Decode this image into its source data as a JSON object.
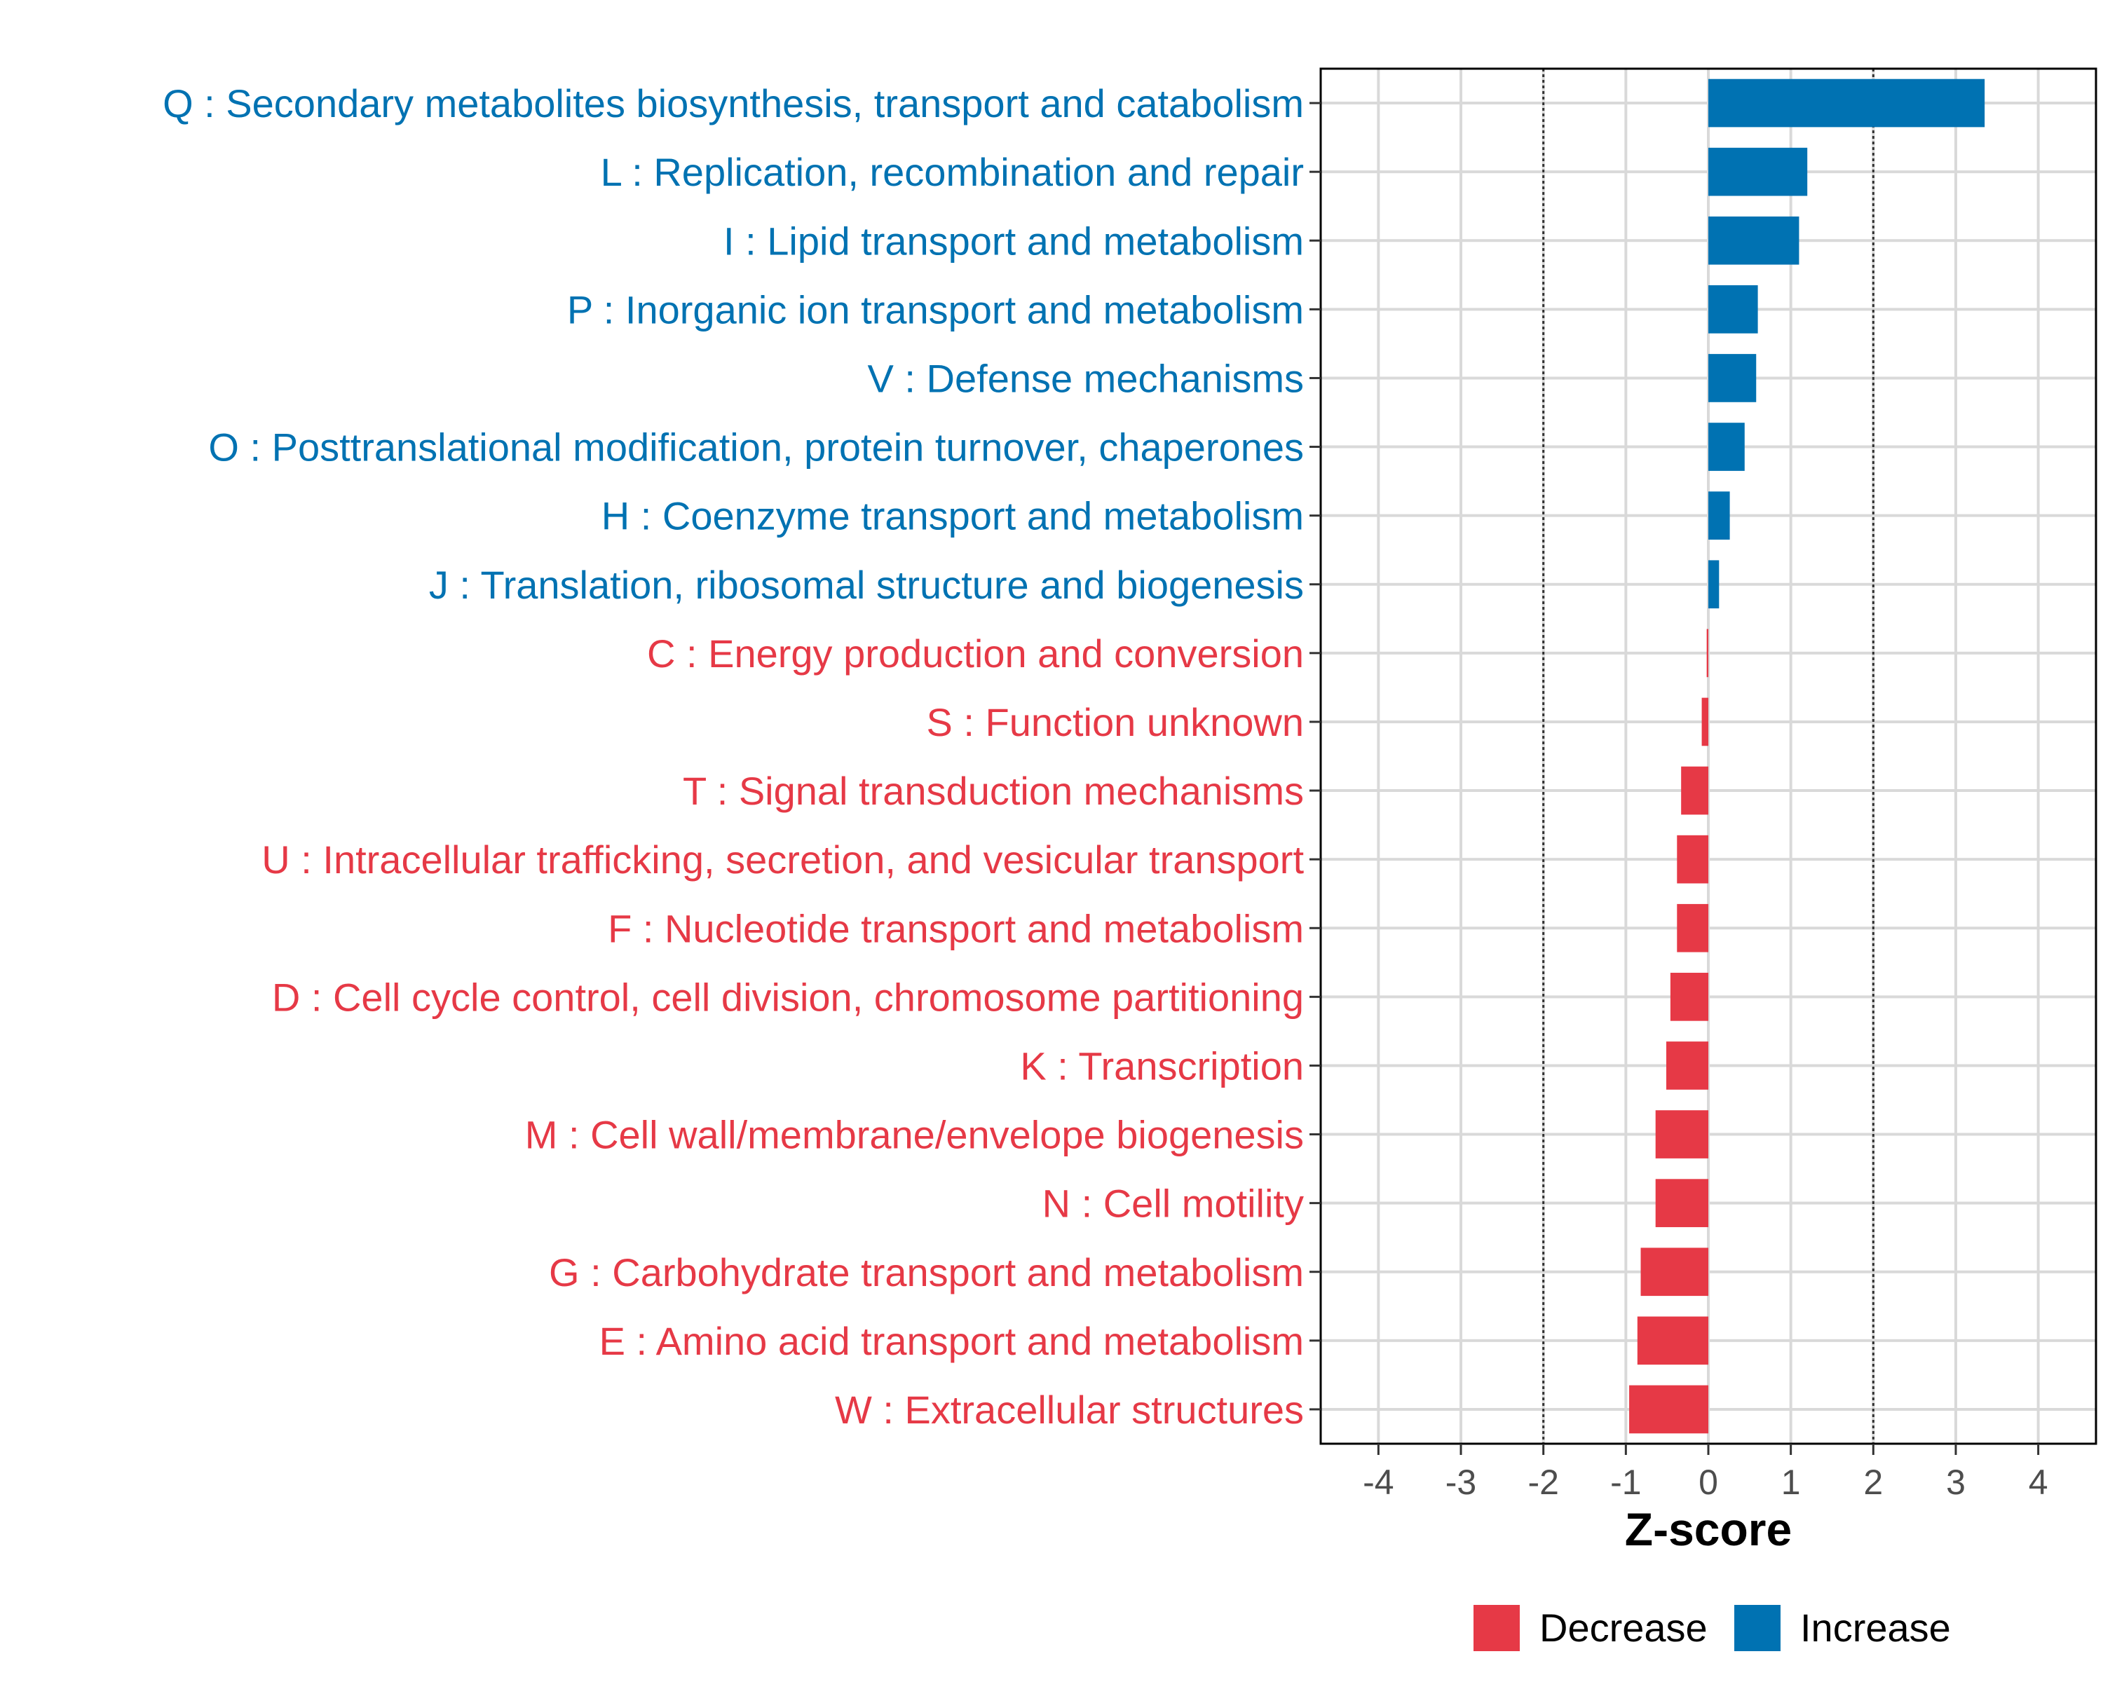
{
  "chart_data": {
    "type": "bar",
    "orientation": "horizontal",
    "xlabel": "Z-score",
    "xlim": [
      -4.7,
      4.7
    ],
    "xticks": [
      -4,
      -3,
      -2,
      -1,
      0,
      1,
      2,
      3,
      4
    ],
    "xtick_labels": [
      "-4",
      "-3",
      "-2",
      "-1",
      "0",
      "1",
      "2",
      "3",
      "4"
    ],
    "reference_lines": [
      -2,
      2
    ],
    "colors": {
      "Decrease": "#e63946",
      "Increase": "#0072b2"
    },
    "legend": {
      "position": "bottom",
      "entries": [
        {
          "label": "Decrease",
          "color": "#e63946"
        },
        {
          "label": "Increase",
          "color": "#0072b2"
        }
      ]
    },
    "categories": [
      "Q : Secondary metabolites biosynthesis, transport and catabolism",
      "L : Replication, recombination and repair",
      "I : Lipid transport and metabolism",
      "P : Inorganic ion transport and metabolism",
      "V : Defense mechanisms",
      "O : Posttranslational modification, protein turnover, chaperones",
      "H : Coenzyme transport and metabolism",
      "J : Translation, ribosomal structure and biogenesis",
      "C : Energy production and conversion",
      "S : Function unknown",
      "T : Signal transduction mechanisms",
      "U : Intracellular trafficking, secretion, and vesicular transport",
      "F : Nucleotide transport and metabolism",
      "D : Cell cycle control, cell division, chromosome partitioning",
      "K : Transcription",
      "M : Cell wall/membrane/envelope biogenesis",
      "N : Cell motility",
      "G : Carbohydrate transport and metabolism",
      "E : Amino acid transport and metabolism",
      "W : Extracellular structures"
    ],
    "values": [
      3.35,
      1.2,
      1.1,
      0.6,
      0.58,
      0.44,
      0.26,
      0.13,
      -0.02,
      -0.08,
      -0.33,
      -0.38,
      -0.38,
      -0.46,
      -0.51,
      -0.64,
      -0.64,
      -0.82,
      -0.86,
      -0.96
    ],
    "groups": [
      "Increase",
      "Increase",
      "Increase",
      "Increase",
      "Increase",
      "Increase",
      "Increase",
      "Increase",
      "Decrease",
      "Decrease",
      "Decrease",
      "Decrease",
      "Decrease",
      "Decrease",
      "Decrease",
      "Decrease",
      "Decrease",
      "Decrease",
      "Decrease",
      "Decrease"
    ]
  }
}
